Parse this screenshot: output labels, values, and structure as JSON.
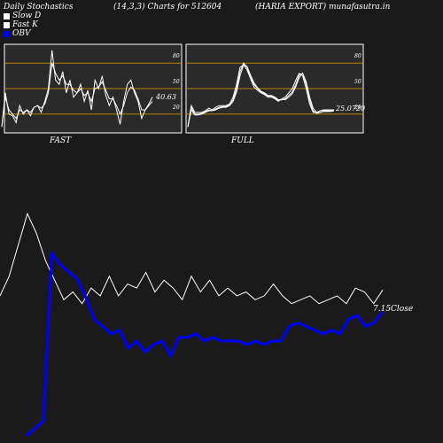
{
  "header": {
    "left": "Daily Stochastics",
    "center": "(14,3,3) Charts for 512604",
    "right": "(HARIA EXPORT) munafasutra.in"
  },
  "legend": [
    {
      "label": "Slow  D",
      "color": "#ffffff"
    },
    {
      "label": "Fast K",
      "color": "#ffffff"
    },
    {
      "label": "OBV",
      "color": "#0000ff"
    }
  ],
  "colors": {
    "background": "#1a1a1a",
    "panel_bg": "#2a2a2a",
    "level_line": "#b8860b",
    "stoch_line": "#ffffff",
    "obv_line": "#0000ff",
    "price_line": "#ffffff"
  },
  "chart_data": [
    {
      "type": "line",
      "label": "FAST",
      "ylim": [
        0,
        100
      ],
      "levels": [
        80,
        50,
        20
      ],
      "level_labels": [
        "80",
        "50",
        "20"
      ],
      "value_label": "40.63",
      "series": [
        {
          "values": [
            5,
            45,
            20,
            18,
            10,
            30,
            20,
            25,
            18,
            28,
            30,
            22,
            35,
            50,
            95,
            60,
            55,
            70,
            45,
            60,
            40,
            45,
            55,
            35,
            48,
            25,
            60,
            50,
            65,
            42,
            30,
            40,
            25,
            8,
            35,
            55,
            60,
            45,
            35,
            15,
            25,
            32,
            40
          ]
        },
        {
          "values": [
            5,
            40,
            25,
            20,
            15,
            25,
            22,
            25,
            22,
            28,
            30,
            27,
            32,
            45,
            80,
            68,
            60,
            65,
            55,
            55,
            48,
            45,
            50,
            42,
            45,
            35,
            50,
            52,
            58,
            48,
            38,
            38,
            30,
            20,
            30,
            45,
            52,
            48,
            38,
            25,
            25,
            30,
            35
          ]
        }
      ]
    },
    {
      "type": "line",
      "label": "FULL",
      "ylim": [
        0,
        100
      ],
      "levels": [
        80,
        50,
        20
      ],
      "level_labels": [
        "80",
        "50",
        "20"
      ],
      "value_label": "25.0720",
      "series": [
        {
          "values": [
            5,
            30,
            22,
            22,
            22,
            24,
            27,
            25,
            28,
            30,
            30,
            30,
            32,
            40,
            55,
            75,
            78,
            72,
            62,
            52,
            48,
            45,
            43,
            40,
            40,
            38,
            35,
            38,
            40,
            45,
            50,
            60,
            68,
            65,
            50,
            32,
            22,
            22,
            24,
            25,
            25,
            25,
            25
          ]
        },
        {
          "values": [
            5,
            28,
            20,
            20,
            21,
            23,
            25,
            24,
            26,
            28,
            29,
            29,
            31,
            37,
            50,
            70,
            80,
            75,
            64,
            55,
            50,
            46,
            44,
            41,
            41,
            39,
            36,
            37,
            38,
            42,
            46,
            55,
            66,
            68,
            55,
            36,
            24,
            21,
            22,
            24,
            24,
            24,
            25
          ]
        },
        {
          "values": [
            5,
            25,
            19,
            19,
            20,
            22,
            24,
            24,
            25,
            27,
            28,
            28,
            30,
            35,
            46,
            65,
            78,
            76,
            66,
            57,
            51,
            47,
            45,
            42,
            42,
            40,
            37,
            37,
            37,
            40,
            44,
            52,
            63,
            68,
            58,
            40,
            27,
            22,
            22,
            23,
            23,
            23,
            24
          ]
        }
      ]
    },
    {
      "type": "line",
      "value_label": "7.15",
      "value_label_suffix": "Close",
      "price_values": [
        7.0,
        7.5,
        8.3,
        9.1,
        8.6,
        7.9,
        7.4,
        6.9,
        7.1,
        6.8,
        7.2,
        7.0,
        7.5,
        7.0,
        7.3,
        7.2,
        7.6,
        7.1,
        7.4,
        7.2,
        6.9,
        7.5,
        7.1,
        7.4,
        7.0,
        7.2,
        7.0,
        7.1,
        6.9,
        7.0,
        7.3,
        7.0,
        6.8,
        6.9,
        7.0,
        6.8,
        6.9,
        7.0,
        6.8,
        7.2,
        7.1,
        6.8,
        7.15
      ],
      "obv_values": [
        -10,
        -8,
        -6,
        40,
        37,
        35,
        33,
        28,
        22,
        20,
        18,
        19,
        14,
        16,
        13,
        15,
        16,
        12,
        17,
        17,
        18,
        16,
        17,
        16,
        16,
        16,
        15,
        16,
        15,
        16,
        16,
        20,
        21,
        20,
        19,
        18,
        19,
        18,
        22,
        23,
        20,
        21,
        24
      ]
    }
  ]
}
